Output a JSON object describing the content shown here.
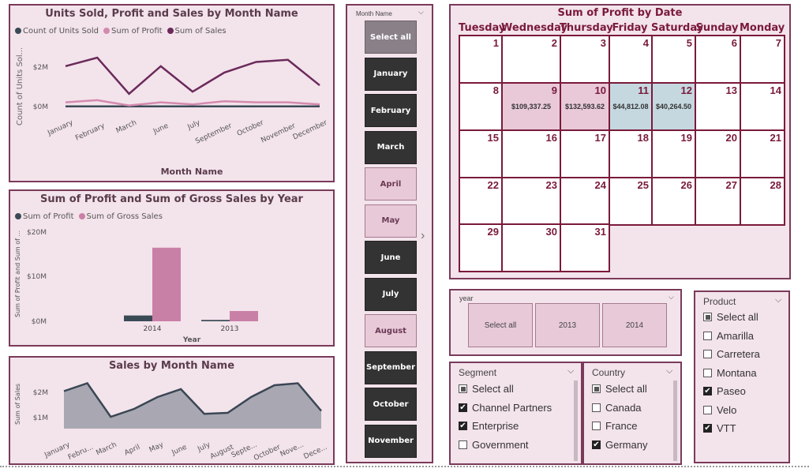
{
  "chart1": {
    "title": "Units Sold, Profit and Sales by Month Name",
    "legend": [
      "Count of Units Sold",
      "Sum of  Profit",
      "Sum of Sales"
    ],
    "xlabel": "Month Name",
    "ylabel": "Count of Units Sol...",
    "yticks": [
      "$2M",
      "$0M"
    ]
  },
  "chart2": {
    "title": "Sum of Profit and Sum of Gross Sales by Year",
    "legend": [
      "Sum of  Profit",
      "Sum of  Gross Sales"
    ],
    "xlabel": "Year",
    "ylabel": "Sum of Profit and Sum of ...",
    "yticks": [
      "$20M",
      "$10M",
      "$0M"
    ]
  },
  "chart3": {
    "title": "Sales by Month Name",
    "ylabel": "Sum of Sales",
    "yticks": [
      "$2M",
      "$1M"
    ]
  },
  "chart_data": [
    {
      "type": "line",
      "title": "Units Sold, Profit and Sales by Month Name",
      "xlabel": "Month Name",
      "ylabel": "Count of Units Sol...",
      "categories": [
        "January",
        "February",
        "March",
        "June",
        "July",
        "September",
        "October",
        "November",
        "December"
      ],
      "series": [
        {
          "name": "Count of Units Sold",
          "color": "#3a4a55",
          "values": [
            0.01,
            0.01,
            0.01,
            0.01,
            0.01,
            0.01,
            0.01,
            0.01,
            0.01
          ]
        },
        {
          "name": "Sum of  Profit",
          "color": "#d48aae",
          "values": [
            0.2,
            0.3,
            0.05,
            0.2,
            0.1,
            0.25,
            0.2,
            0.2,
            0.1
          ]
        },
        {
          "name": "Sum of Sales",
          "color": "#6a2a5a",
          "values": [
            1.9,
            2.3,
            0.6,
            1.9,
            0.7,
            1.6,
            2.1,
            2.2,
            1.0
          ]
        }
      ],
      "ylim": [
        0,
        2.6
      ],
      "grid": false,
      "legend_position": "top-left"
    },
    {
      "type": "bar",
      "title": "Sum of Profit and Sum of Gross Sales by Year",
      "xlabel": "Year",
      "ylabel": "Sum of Profit and Sum of ...",
      "categories": [
        "2014",
        "2013"
      ],
      "series": [
        {
          "name": "Sum of  Profit",
          "color": "#3a4a55",
          "values": [
            1.3,
            0.3
          ]
        },
        {
          "name": "Sum of  Gross Sales",
          "color": "#c980a7",
          "values": [
            16.5,
            2.3
          ]
        }
      ],
      "ylim": [
        0,
        20
      ],
      "legend_position": "top-left"
    },
    {
      "type": "area",
      "title": "Sales by Month Name",
      "ylabel": "Sum of Sales",
      "categories": [
        "January",
        "Febru...",
        "March",
        "April",
        "May",
        "June",
        "July",
        "August",
        "Septe...",
        "October",
        "Nove...",
        "Dece..."
      ],
      "series": [
        {
          "name": "Sum of Sales",
          "color": "#6b7480",
          "values": [
            1.9,
            2.3,
            0.6,
            1.0,
            1.6,
            2.0,
            0.75,
            0.8,
            1.6,
            2.2,
            2.3,
            0.9
          ]
        }
      ],
      "ylim": [
        0,
        2.6
      ]
    }
  ],
  "month_slicer": {
    "header": "Month Name",
    "buttons": [
      {
        "label": "Select all",
        "style": "grey"
      },
      {
        "label": "January",
        "style": "dark"
      },
      {
        "label": "February",
        "style": "dark"
      },
      {
        "label": "March",
        "style": "dark"
      },
      {
        "label": "April",
        "style": "light"
      },
      {
        "label": "May",
        "style": "light"
      },
      {
        "label": "June",
        "style": "dark"
      },
      {
        "label": "July",
        "style": "dark"
      },
      {
        "label": "August",
        "style": "light"
      },
      {
        "label": "September",
        "style": "dark"
      },
      {
        "label": "October",
        "style": "dark"
      },
      {
        "label": "November",
        "style": "dark"
      }
    ]
  },
  "calendar": {
    "title": "Sum of Profit by Date",
    "days": [
      "Tuesday",
      "Wednesday",
      "Thursday",
      "Friday",
      "Saturday",
      "Sunday",
      "Monday"
    ],
    "dates": [
      {
        "d": "1"
      },
      {
        "d": "2"
      },
      {
        "d": "3"
      },
      {
        "d": "4"
      },
      {
        "d": "5"
      },
      {
        "d": "6"
      },
      {
        "d": "7"
      },
      {
        "d": "8"
      },
      {
        "d": "9",
        "v": "$109,337.25",
        "s": "pink"
      },
      {
        "d": "10",
        "v": "$132,593.62",
        "s": "pink"
      },
      {
        "d": "11",
        "v": "$44,812.08",
        "s": "blue"
      },
      {
        "d": "12",
        "v": "$40,264.50",
        "s": "blue"
      },
      {
        "d": "13"
      },
      {
        "d": "14"
      },
      {
        "d": "15"
      },
      {
        "d": "16"
      },
      {
        "d": "17"
      },
      {
        "d": "18"
      },
      {
        "d": "19"
      },
      {
        "d": "20"
      },
      {
        "d": "21"
      },
      {
        "d": "22"
      },
      {
        "d": "23"
      },
      {
        "d": "24"
      },
      {
        "d": "25"
      },
      {
        "d": "26"
      },
      {
        "d": "27"
      },
      {
        "d": "28"
      },
      {
        "d": "29"
      },
      {
        "d": "30"
      },
      {
        "d": "31"
      }
    ]
  },
  "year_slicer": {
    "header": "year",
    "buttons": [
      "Select all",
      "2013",
      "2014"
    ]
  },
  "segment": {
    "header": "Segment",
    "items": [
      {
        "label": "Select all",
        "state": "partial"
      },
      {
        "label": "Channel Partners",
        "state": "checked"
      },
      {
        "label": "Enterprise",
        "state": "checked"
      },
      {
        "label": "Government",
        "state": "unchecked"
      }
    ]
  },
  "country": {
    "header": "Country",
    "items": [
      {
        "label": "Select all",
        "state": "partial"
      },
      {
        "label": "Canada",
        "state": "unchecked"
      },
      {
        "label": "France",
        "state": "unchecked"
      },
      {
        "label": "Germany",
        "state": "checked"
      }
    ]
  },
  "product": {
    "header": "Product",
    "items": [
      {
        "label": "Select all",
        "state": "partial"
      },
      {
        "label": "Amarilla",
        "state": "unchecked"
      },
      {
        "label": "Carretera",
        "state": "unchecked"
      },
      {
        "label": "Montana",
        "state": "unchecked"
      },
      {
        "label": "Paseo",
        "state": "checked"
      },
      {
        "label": "Velo",
        "state": "unchecked"
      },
      {
        "label": "VTT",
        "state": "checked"
      }
    ]
  },
  "icons": {
    "chevron": "chevron-down-icon",
    "next": "chevron-right-icon",
    "check": "✔"
  }
}
